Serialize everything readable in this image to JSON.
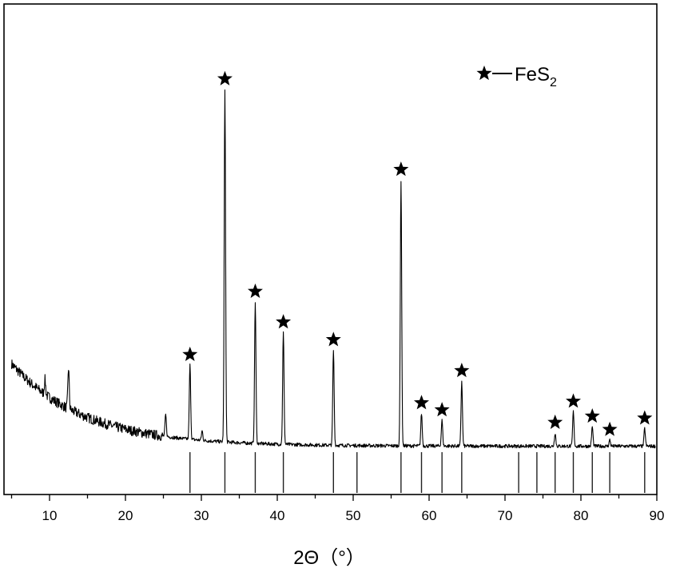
{
  "chart_data": {
    "type": "line",
    "xlabel": "2Θ（°）",
    "ylabel": "",
    "xlim": [
      4,
      90
    ],
    "ylim": [
      0,
      100
    ],
    "y_axis_tick_labels": false,
    "x_ticks": [
      10,
      20,
      30,
      40,
      50,
      60,
      70,
      80,
      90
    ],
    "grid": false,
    "legend": {
      "placement": "top-right",
      "marker": "star",
      "label": "FeS",
      "label_subscript": "2"
    },
    "series": [
      {
        "peaks": [
          {
            "x": 9.4,
            "y": 17.5,
            "marked": false
          },
          {
            "x": 12.5,
            "y": 20.5,
            "marked": false
          },
          {
            "x": 25.3,
            "y": 8.5,
            "marked": false
          },
          {
            "x": 28.5,
            "y": 21.2,
            "marked": true
          },
          {
            "x": 30.1,
            "y": 4.4,
            "marked": false
          },
          {
            "x": 33.1,
            "y": 91.5,
            "marked": true
          },
          {
            "x": 37.1,
            "y": 37.3,
            "marked": true
          },
          {
            "x": 40.8,
            "y": 29.5,
            "marked": true
          },
          {
            "x": 47.4,
            "y": 25.0,
            "marked": true
          },
          {
            "x": 56.3,
            "y": 68.4,
            "marked": true
          },
          {
            "x": 59.0,
            "y": 8.9,
            "marked": true
          },
          {
            "x": 61.7,
            "y": 7.1,
            "marked": true
          },
          {
            "x": 64.3,
            "y": 17.1,
            "marked": true
          },
          {
            "x": 76.6,
            "y": 3.9,
            "marked": true
          },
          {
            "x": 79.0,
            "y": 9.3,
            "marked": true
          },
          {
            "x": 81.5,
            "y": 5.5,
            "marked": true
          },
          {
            "x": 83.8,
            "y": 2.1,
            "marked": true
          },
          {
            "x": 88.4,
            "y": 5.0,
            "marked": true
          }
        ]
      }
    ],
    "reference_lines_x": [
      28.5,
      33.1,
      37.1,
      40.8,
      47.4,
      50.5,
      56.3,
      59.0,
      61.7,
      64.3,
      71.8,
      74.2,
      76.6,
      79.0,
      81.5,
      83.8,
      88.4
    ]
  }
}
